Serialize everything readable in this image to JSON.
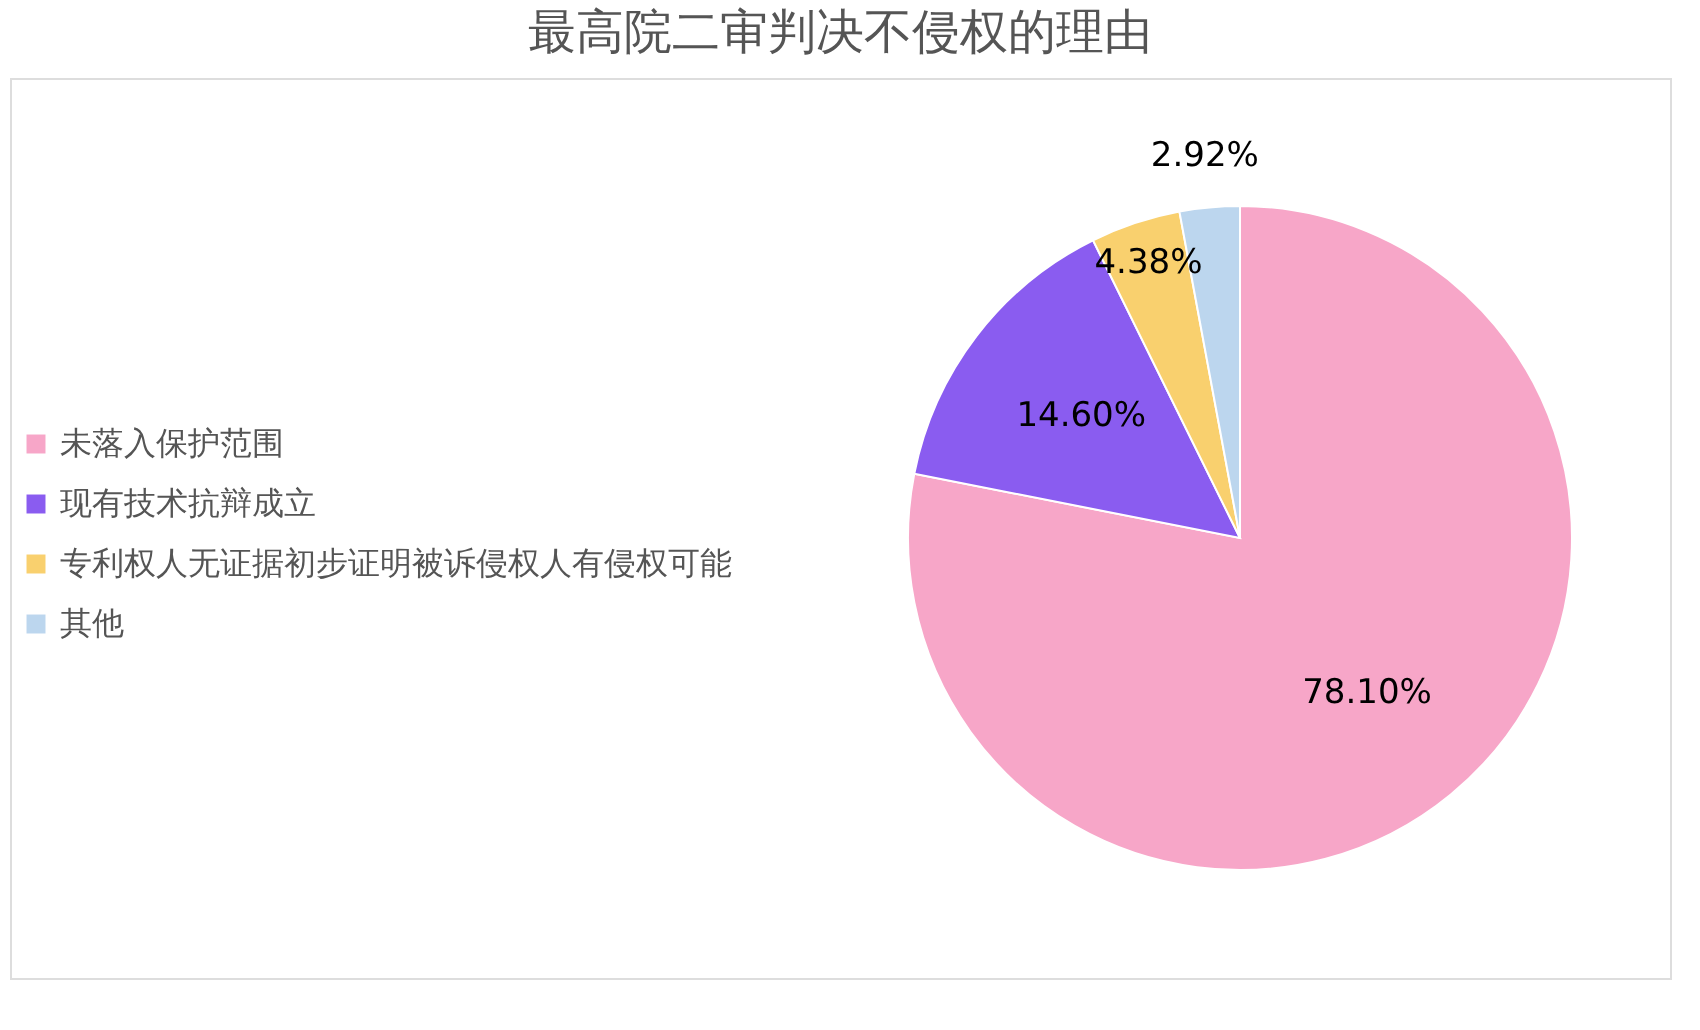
{
  "chart_data": {
    "type": "pie",
    "title": "最高院二审判决不侵权的理由",
    "categories": [
      "未落入保护范围",
      "现有技术抗辩成立",
      "专利权人无证据初步证明被诉侵权人有侵权可能",
      "其他"
    ],
    "values": [
      78.1,
      14.6,
      4.38,
      2.92
    ],
    "colors": [
      "#f7a6c8",
      "#8a5cf0",
      "#f9d06e",
      "#bcd6ee"
    ],
    "value_labels": [
      "78.10%",
      "14.60%",
      "4.38%",
      "2.92%"
    ],
    "legend": "left"
  }
}
